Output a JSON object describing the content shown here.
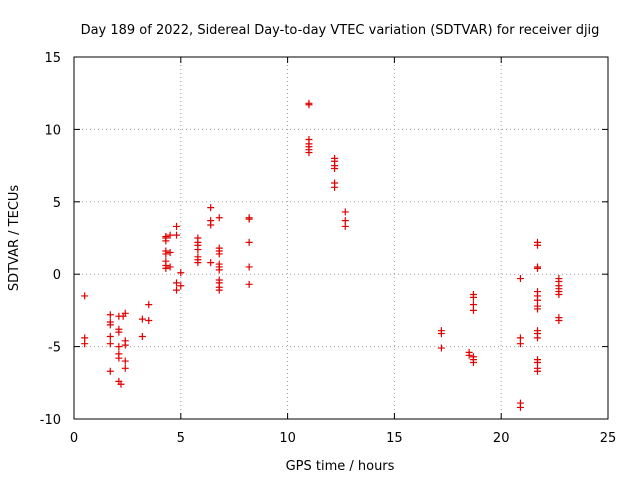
{
  "chart_data": {
    "type": "scatter",
    "title": "Day 189 of 2022, Sidereal Day-to-day VTEC variation (SDTVAR) for receiver djig",
    "xlabel": "GPS time / hours",
    "ylabel": "SDTVAR / TECUs",
    "xlim": [
      0,
      25
    ],
    "ylim": [
      -10,
      15
    ],
    "xticks": [
      "0",
      "5",
      "10",
      "15",
      "20",
      "25"
    ],
    "yticks": [
      "-10",
      "-5",
      "0",
      "5",
      "10",
      "15"
    ],
    "grid": true,
    "marker": "plus",
    "marker_color": "#e00000",
    "series": [
      {
        "name": "SDTVAR",
        "points": [
          [
            0.5,
            -1.5
          ],
          [
            0.5,
            -4.4
          ],
          [
            0.5,
            -4.8
          ],
          [
            1.7,
            -2.8
          ],
          [
            1.7,
            -3.3
          ],
          [
            1.7,
            -3.5
          ],
          [
            1.7,
            -4.3
          ],
          [
            1.7,
            -4.8
          ],
          [
            1.7,
            -6.7
          ],
          [
            2.1,
            -2.9
          ],
          [
            2.1,
            -3.8
          ],
          [
            2.1,
            -4.0
          ],
          [
            2.1,
            -5.0
          ],
          [
            2.1,
            -5.5
          ],
          [
            2.1,
            -5.8
          ],
          [
            2.1,
            -7.4
          ],
          [
            2.2,
            -7.6
          ],
          [
            2.3,
            -2.9
          ],
          [
            2.4,
            -2.7
          ],
          [
            2.4,
            -4.6
          ],
          [
            2.4,
            -4.9
          ],
          [
            2.4,
            -6.0
          ],
          [
            2.4,
            -6.5
          ],
          [
            3.2,
            -3.1
          ],
          [
            3.2,
            -4.3
          ],
          [
            3.5,
            -2.1
          ],
          [
            3.5,
            -3.2
          ],
          [
            4.3,
            2.3
          ],
          [
            4.3,
            2.5
          ],
          [
            4.3,
            2.6
          ],
          [
            4.3,
            1.6
          ],
          [
            4.3,
            1.4
          ],
          [
            4.3,
            0.9
          ],
          [
            4.3,
            0.6
          ],
          [
            4.3,
            0.4
          ],
          [
            4.5,
            2.7
          ],
          [
            4.5,
            1.5
          ],
          [
            4.5,
            0.5
          ],
          [
            4.8,
            3.3
          ],
          [
            4.8,
            2.7
          ],
          [
            4.8,
            -0.6
          ],
          [
            4.8,
            -1.1
          ],
          [
            5.0,
            0.1
          ],
          [
            5.0,
            -0.8
          ],
          [
            5.8,
            2.5
          ],
          [
            5.8,
            2.2
          ],
          [
            5.8,
            2.0
          ],
          [
            5.8,
            1.7
          ],
          [
            5.8,
            1.2
          ],
          [
            5.8,
            1.0
          ],
          [
            5.8,
            0.8
          ],
          [
            6.4,
            4.6
          ],
          [
            6.4,
            3.7
          ],
          [
            6.4,
            3.4
          ],
          [
            6.4,
            0.8
          ],
          [
            6.8,
            3.9
          ],
          [
            6.8,
            1.8
          ],
          [
            6.8,
            1.6
          ],
          [
            6.8,
            1.4
          ],
          [
            6.8,
            0.7
          ],
          [
            6.8,
            0.5
          ],
          [
            6.8,
            0.3
          ],
          [
            6.8,
            -0.4
          ],
          [
            6.8,
            -0.6
          ],
          [
            6.8,
            -0.9
          ],
          [
            6.8,
            -1.1
          ],
          [
            8.2,
            3.9
          ],
          [
            8.2,
            3.8
          ],
          [
            8.2,
            2.2
          ],
          [
            8.2,
            0.5
          ],
          [
            8.2,
            -0.7
          ],
          [
            11.0,
            11.8
          ],
          [
            11.0,
            11.7
          ],
          [
            11.0,
            9.3
          ],
          [
            11.0,
            9.0
          ],
          [
            11.0,
            8.8
          ],
          [
            11.0,
            8.6
          ],
          [
            11.0,
            8.4
          ],
          [
            12.2,
            8.0
          ],
          [
            12.2,
            7.8
          ],
          [
            12.2,
            7.5
          ],
          [
            12.2,
            7.3
          ],
          [
            12.2,
            6.3
          ],
          [
            12.2,
            6.0
          ],
          [
            12.7,
            4.3
          ],
          [
            12.7,
            3.7
          ],
          [
            12.7,
            3.3
          ],
          [
            17.2,
            -3.9
          ],
          [
            17.2,
            -4.1
          ],
          [
            17.2,
            -5.1
          ],
          [
            18.5,
            -5.4
          ],
          [
            18.5,
            -5.6
          ],
          [
            18.7,
            -1.4
          ],
          [
            18.7,
            -1.6
          ],
          [
            18.7,
            -2.1
          ],
          [
            18.7,
            -2.5
          ],
          [
            18.7,
            -5.7
          ],
          [
            18.7,
            -5.9
          ],
          [
            18.7,
            -6.1
          ],
          [
            20.9,
            -0.3
          ],
          [
            20.9,
            -4.4
          ],
          [
            20.9,
            -4.8
          ],
          [
            20.9,
            -8.9
          ],
          [
            20.9,
            -9.2
          ],
          [
            21.7,
            2.2
          ],
          [
            21.7,
            2.0
          ],
          [
            21.7,
            0.5
          ],
          [
            21.7,
            0.4
          ],
          [
            21.7,
            -1.2
          ],
          [
            21.7,
            -1.5
          ],
          [
            21.7,
            -1.8
          ],
          [
            21.7,
            -2.2
          ],
          [
            21.7,
            -2.4
          ],
          [
            21.7,
            -3.9
          ],
          [
            21.7,
            -4.1
          ],
          [
            21.7,
            -4.4
          ],
          [
            21.7,
            -5.9
          ],
          [
            21.7,
            -6.1
          ],
          [
            21.7,
            -6.5
          ],
          [
            21.7,
            -6.7
          ],
          [
            22.7,
            -0.3
          ],
          [
            22.7,
            -0.5
          ],
          [
            22.7,
            -0.8
          ],
          [
            22.7,
            -1.0
          ],
          [
            22.7,
            -1.2
          ],
          [
            22.7,
            -1.4
          ],
          [
            22.7,
            -3.0
          ],
          [
            22.7,
            -3.2
          ]
        ]
      }
    ]
  }
}
